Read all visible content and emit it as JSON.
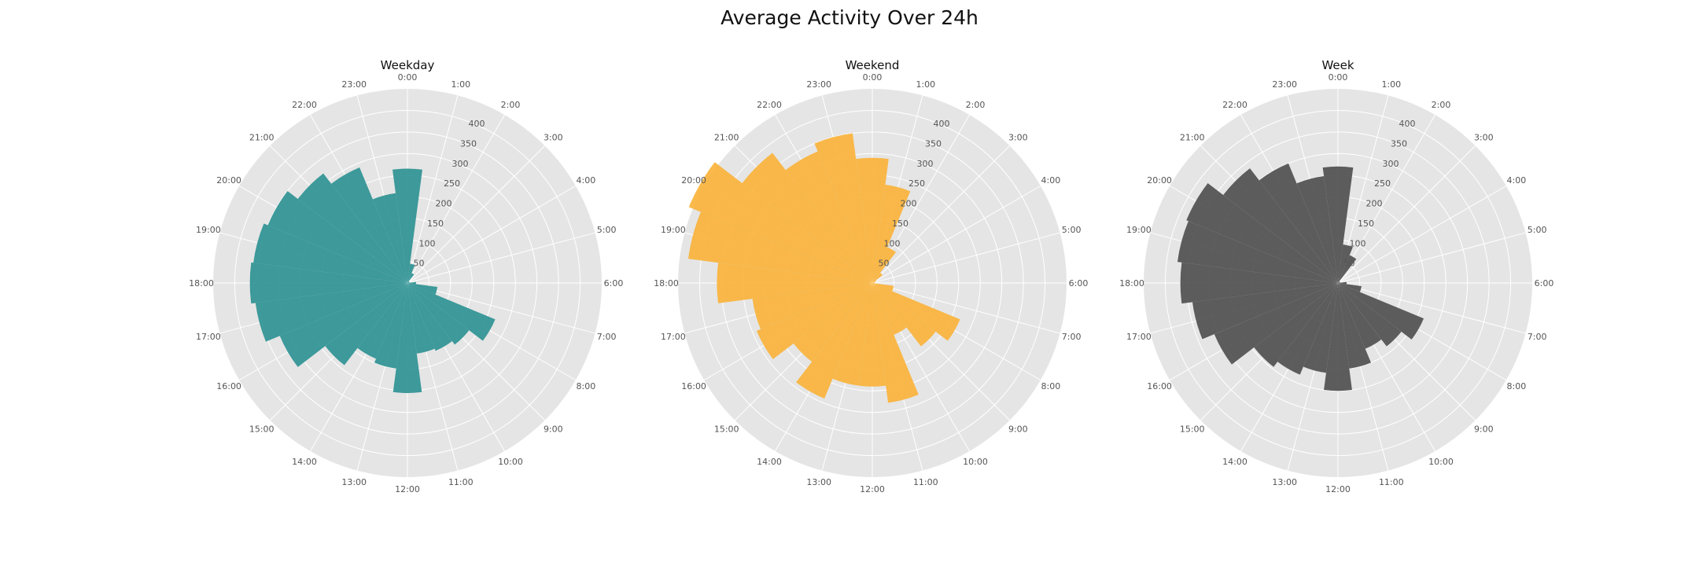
{
  "figure": {
    "title": "Average Activity Over 24h"
  },
  "chart_data": [
    {
      "type": "bar",
      "projection": "polar",
      "title": "Weekday",
      "color": "#2a9091",
      "categories": [
        "0:00",
        "1:00",
        "2:00",
        "3:00",
        "4:00",
        "5:00",
        "6:00",
        "7:00",
        "8:00",
        "9:00",
        "10:00",
        "11:00",
        "12:00",
        "13:00",
        "14:00",
        "15:00",
        "16:00",
        "17:00",
        "18:00",
        "19:00",
        "20:00",
        "21:00",
        "22:00",
        "23:00"
      ],
      "values": [
        265,
        45,
        25,
        5,
        5,
        5,
        20,
        70,
        220,
        180,
        170,
        165,
        255,
        200,
        190,
        240,
        320,
        355,
        365,
        360,
        350,
        320,
        290,
        210
      ],
      "rlim": [
        0,
        450
      ],
      "rticks": [
        50,
        100,
        150,
        200,
        250,
        300,
        350,
        400
      ],
      "grid": true,
      "legend": "none"
    },
    {
      "type": "bar",
      "projection": "polar",
      "title": "Weekend",
      "color": "#f9b136",
      "categories": [
        "0:00",
        "1:00",
        "2:00",
        "3:00",
        "4:00",
        "5:00",
        "6:00",
        "7:00",
        "8:00",
        "9:00",
        "10:00",
        "11:00",
        "12:00",
        "13:00",
        "14:00",
        "15:00",
        "16:00",
        "17:00",
        "18:00",
        "19:00",
        "20:00",
        "21:00",
        "22:00",
        "23:00"
      ],
      "values": [
        290,
        230,
        90,
        30,
        10,
        5,
        5,
        50,
        220,
        185,
        130,
        280,
        240,
        240,
        290,
        230,
        290,
        280,
        360,
        430,
        460,
        380,
        330,
        350
      ],
      "rlim": [
        0,
        450
      ],
      "rticks": [
        50,
        100,
        150,
        200,
        250,
        300,
        350,
        400
      ],
      "grid": true,
      "legend": "none"
    },
    {
      "type": "bar",
      "projection": "polar",
      "title": "Week",
      "color": "#4d4d4d",
      "categories": [
        "0:00",
        "1:00",
        "2:00",
        "3:00",
        "4:00",
        "5:00",
        "6:00",
        "7:00",
        "8:00",
        "9:00",
        "10:00",
        "11:00",
        "12:00",
        "13:00",
        "14:00",
        "15:00",
        "16:00",
        "17:00",
        "18:00",
        "19:00",
        "20:00",
        "21:00",
        "22:00",
        "23:00"
      ],
      "values": [
        270,
        90,
        70,
        5,
        5,
        5,
        20,
        55,
        215,
        185,
        165,
        200,
        250,
        210,
        230,
        245,
        310,
        340,
        365,
        375,
        380,
        335,
        300,
        250
      ],
      "rlim": [
        0,
        450
      ],
      "rticks": [
        50,
        100,
        150,
        200,
        250,
        300,
        350,
        400
      ],
      "grid": true,
      "legend": "none"
    }
  ]
}
